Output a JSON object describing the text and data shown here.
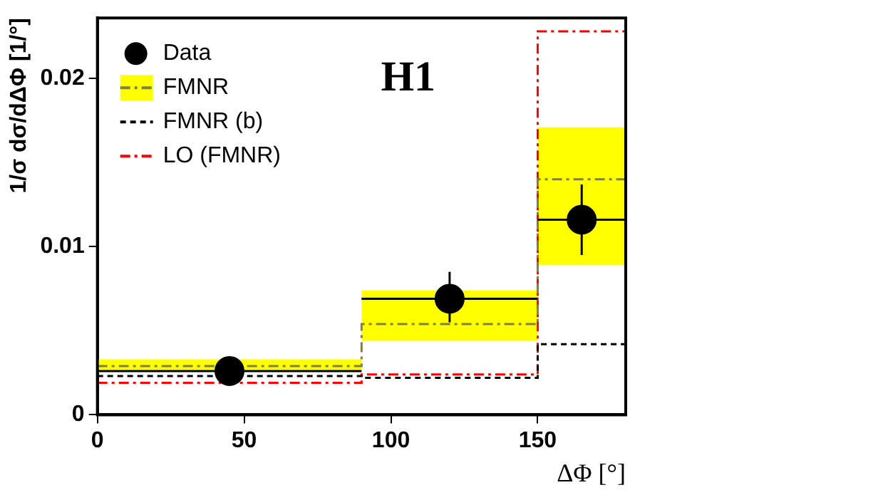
{
  "chart_data": {
    "type": "histogram",
    "bins": [
      0,
      90,
      150,
      180
    ],
    "xlabel": "ΔΦ [°]",
    "ylabel": "1/σ dσ/dΔΦ [1/°]",
    "annotations": [
      "H1"
    ],
    "xlim": [
      0,
      180
    ],
    "xticks": [
      0,
      50,
      100,
      150
    ],
    "ylim": [
      0,
      0.0236
    ],
    "yticks": [
      0,
      0.01,
      0.02
    ],
    "grid": false,
    "legend": "top left",
    "series": [
      {
        "name": "Data",
        "type": "scatter",
        "color": "#000000",
        "x": [
          45,
          120,
          165
        ],
        "values": [
          0.0026,
          0.0069,
          0.0116
        ],
        "errors": [
          null,
          [
            0.0055,
            0.0085
          ],
          [
            0.0095,
            0.0137
          ]
        ],
        "xerrors": [
          [
            0,
            90
          ],
          [
            90,
            150
          ],
          [
            150,
            180
          ]
        ],
        "marker": "circle"
      },
      {
        "name": "FMNR",
        "color": "#808040",
        "values": [
          0.0029,
          0.0054,
          0.014
        ],
        "line_style": "dashdot"
      },
      {
        "color": "#ffff00",
        "base": [
          0.0027,
          0.0044,
          0.0089
        ],
        "values": [
          0.0006,
          0.003,
          0.0082
        ]
      },
      {
        "name": "FMNR (b)",
        "color": "#000000",
        "values": [
          0.0023,
          0.0022,
          0.0042
        ],
        "line_style": "dashed"
      },
      {
        "name": "LO (FMNR)",
        "color": "#ff0000",
        "values": [
          0.0019,
          0.0024,
          0.0228
        ],
        "line_style": "dashdot"
      }
    ]
  }
}
